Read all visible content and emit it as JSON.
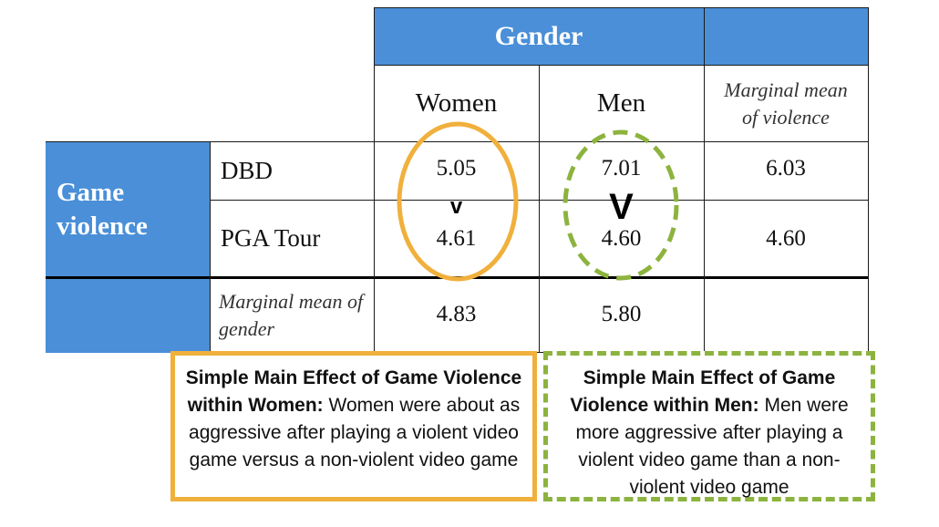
{
  "table": {
    "column_group_header": "Gender",
    "column_headers": [
      "Women",
      "Men"
    ],
    "marginal_violence_header": "Marginal mean of violence",
    "row_group_header": "Game violence",
    "rows": [
      {
        "label": "DBD",
        "women": "5.05",
        "men": "7.01",
        "marginal": "6.03"
      },
      {
        "label": "PGA Tour",
        "women": "4.61",
        "men": "4.60",
        "marginal": "4.60"
      }
    ],
    "marginal_gender_label": "Marginal mean of gender",
    "marginal_gender": {
      "women": "4.83",
      "men": "5.80"
    },
    "comparison_women": "v",
    "comparison_men": "V"
  },
  "colors": {
    "header_blue": "#4a8fd8",
    "women_highlight": "#f0b03c",
    "men_highlight": "#8db33f"
  },
  "notes": {
    "women": {
      "title": "Simple Main Effect of Game Violence within Women:",
      "body": "Women were about as aggressive after playing a violent video game versus a non-violent video game"
    },
    "men": {
      "title": "Simple Main Effect of Game Violence within Men:",
      "body": "Men were more aggressive after playing a violent video game than a non-violent video game"
    }
  }
}
